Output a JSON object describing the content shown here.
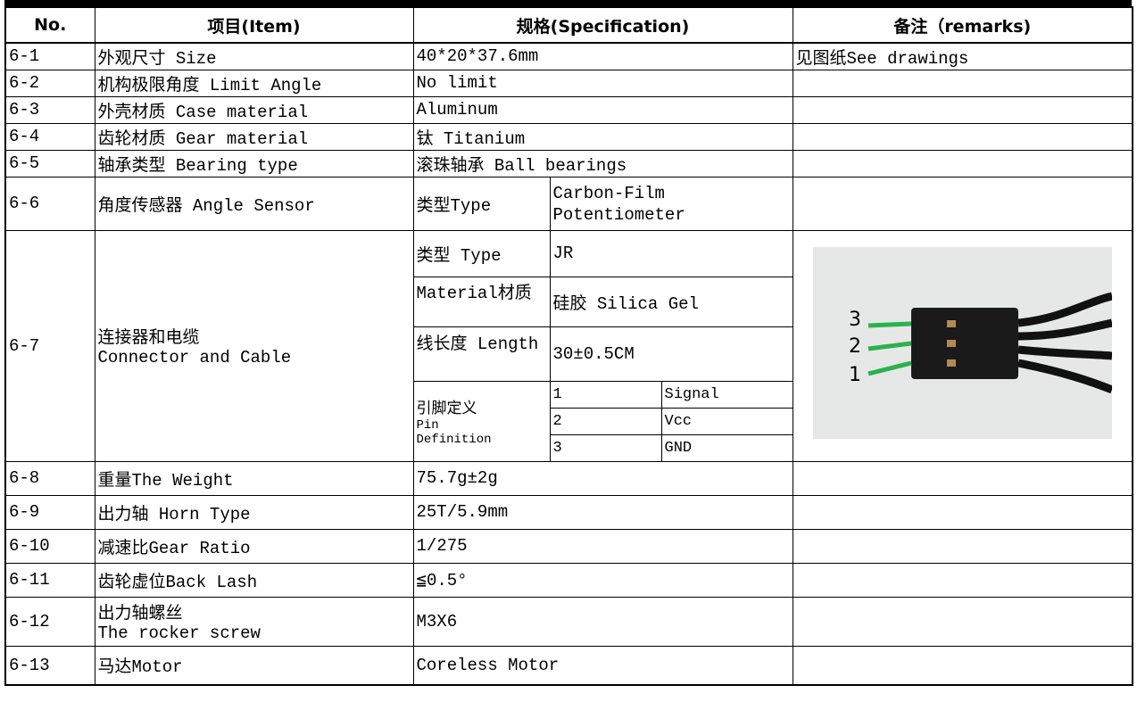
{
  "table": {
    "header": [
      "No.",
      "项目(Item)",
      "规格(Specification)",
      "备注（remarks)"
    ],
    "rows": [
      {
        "no": "6-1",
        "item": "外观尺寸 Size",
        "spec": "40*20*37.6mm",
        "remarks": "见图纸See drawings"
      },
      {
        "no": "6-2",
        "item": "机构极限角度 Limit Angle",
        "spec": "No limit"
      },
      {
        "no": "6-3",
        "item": "外壳材质 Case material",
        "spec": "Aluminum"
      },
      {
        "no": "6-4",
        "item": "齿轮材质 Gear material",
        "spec": "钛 Titanium"
      },
      {
        "no": "6-5",
        "item": "轴承类型 Bearing type",
        "spec": "滚珠轴承 Ball bearings"
      },
      {
        "no": "6-6",
        "item": "角度传感器 Angle Sensor",
        "spec": {
          "label": "类型Type",
          "value": "Carbon-Film Potentiometer"
        }
      },
      {
        "no": "6-7",
        "item": [
          "连接器和电缆",
          "Connector and Cable"
        ],
        "spec": [
          {
            "label": "类型 Type",
            "value": "JR"
          },
          {
            "label": "Material材质",
            "value": "硅胶 Silica Gel"
          },
          {
            "label": "线长度 Length",
            "value": "30±0.5CM"
          },
          {
            "label": "引脚定义",
            "label_en": "Pin Definition",
            "pins": [
              {
                "pin": "1",
                "name": "Signal"
              },
              {
                "pin": "2",
                "name": "Vcc"
              },
              {
                "pin": "3",
                "name": "GND"
              }
            ]
          }
        ],
        "image_labels": [
          "3",
          "2",
          "1"
        ]
      },
      {
        "no": "6-8",
        "item": "重量The Weight",
        "spec": "75.7g±2g"
      },
      {
        "no": "6-9",
        "item": "出力轴 Horn Type",
        "spec": "25T/5.9mm"
      },
      {
        "no": "6-10",
        "item": "减速比Gear Ratio",
        "spec": "1/275"
      },
      {
        "no": "6-11",
        "item": "齿轮虚位Back Lash",
        "spec": "≦0.5°"
      },
      {
        "no": "6-12",
        "item": [
          "出力轴螺丝",
          "The rocker screw"
        ],
        "spec": "M3X6"
      },
      {
        "no": "6-13",
        "item": "马达Motor",
        "spec": "Coreless Motor"
      }
    ]
  }
}
